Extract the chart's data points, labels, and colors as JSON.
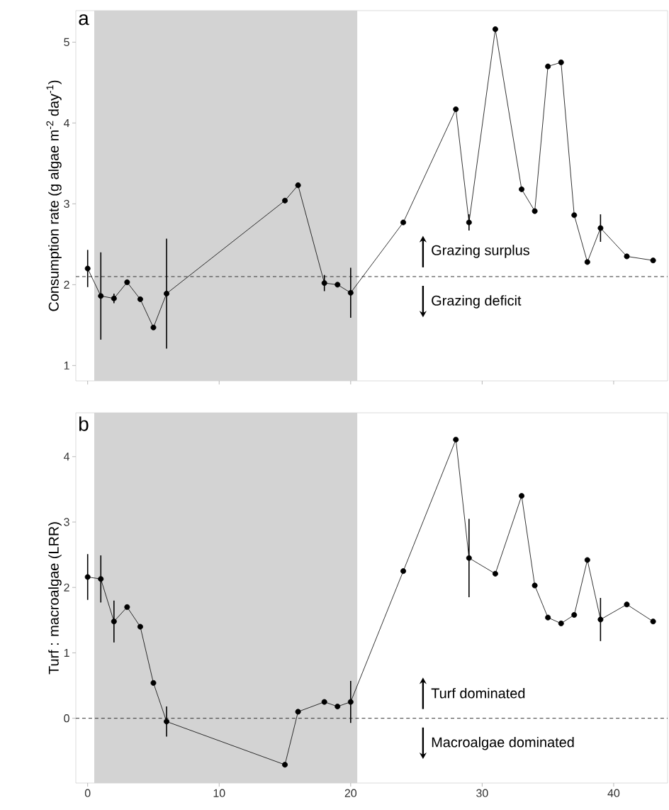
{
  "chart_data": [
    {
      "type": "line",
      "ylabel": "Consumption rate (g algae m$^{-2}$ day$^{-1}$)",
      "annotations": [
        "a",
        "Grazing surplus",
        "Grazing deficit"
      ],
      "x": [
        0,
        1,
        2,
        3,
        4,
        5,
        6,
        15,
        16,
        18,
        19,
        20,
        24,
        28,
        29,
        31,
        33,
        34,
        35,
        36,
        37,
        38,
        39,
        41,
        43
      ],
      "series": [
        {
          "color": "#000000",
          "values": [
            2.2,
            1.86,
            1.83,
            2.03,
            1.82,
            1.47,
            1.89,
            3.04,
            3.23,
            2.02,
            2.0,
            1.9,
            2.77,
            4.17,
            2.77,
            5.16,
            3.18,
            2.91,
            4.7,
            4.75,
            2.86,
            2.28,
            2.7,
            2.35,
            2.3
          ],
          "errors": [
            0.23,
            0.54,
            0.06,
            null,
            null,
            null,
            0.68,
            null,
            null,
            0.1,
            null,
            0.31,
            null,
            null,
            0.1,
            null,
            null,
            null,
            null,
            null,
            null,
            null,
            0.17,
            null,
            null
          ]
        }
      ],
      "xlim": [
        -0.9,
        44.1
      ],
      "ylim": [
        0.81,
        5.39
      ],
      "xticks": [
        0,
        10,
        20,
        30,
        40
      ],
      "yticks": [
        1,
        2,
        3,
        4,
        5
      ],
      "tick_labels": "y",
      "marker": "circle",
      "line_style": "solid",
      "grid": false,
      "ref_lines": [
        {
          "axis": "y",
          "value": 2.1,
          "line_style": "dashed",
          "color": "#333333"
        }
      ],
      "bands": [
        {
          "axis": "x",
          "from": 0.5,
          "to": 20.5,
          "color": "#d3d3d3"
        }
      ]
    },
    {
      "type": "line",
      "ylabel": "Turf : macroalgae (LRR)",
      "annotations": [
        "b",
        "Turf dominated",
        "Macroalgae dominated"
      ],
      "x": [
        0,
        1,
        2,
        3,
        4,
        5,
        6,
        15,
        16,
        18,
        19,
        20,
        24,
        28,
        29,
        31,
        33,
        34,
        35,
        36,
        37,
        38,
        39,
        41,
        43
      ],
      "series": [
        {
          "color": "#000000",
          "values": [
            2.16,
            2.13,
            1.48,
            1.7,
            1.4,
            0.54,
            -0.05,
            -0.71,
            0.1,
            0.25,
            0.18,
            0.25,
            2.25,
            4.26,
            2.45,
            2.21,
            3.4,
            2.03,
            1.54,
            1.45,
            1.58,
            2.42,
            1.51,
            1.74,
            1.48
          ],
          "errors": [
            0.35,
            0.36,
            0.32,
            null,
            null,
            null,
            0.23,
            null,
            null,
            null,
            null,
            0.32,
            null,
            null,
            0.6,
            null,
            null,
            null,
            null,
            null,
            null,
            null,
            0.33,
            null,
            null
          ]
        }
      ],
      "xlim": [
        -0.9,
        44.1
      ],
      "ylim": [
        -0.99,
        4.67
      ],
      "xticks": [
        0,
        10,
        20,
        30,
        40
      ],
      "yticks": [
        0,
        1,
        2,
        3,
        4
      ],
      "marker": "circle",
      "line_style": "solid",
      "grid": false,
      "ref_lines": [
        {
          "axis": "y",
          "value": 0,
          "line_style": "dashed",
          "color": "#333333"
        }
      ],
      "bands": [
        {
          "axis": "x",
          "from": 0.5,
          "to": 20.5,
          "color": "#d3d3d3"
        }
      ]
    }
  ]
}
